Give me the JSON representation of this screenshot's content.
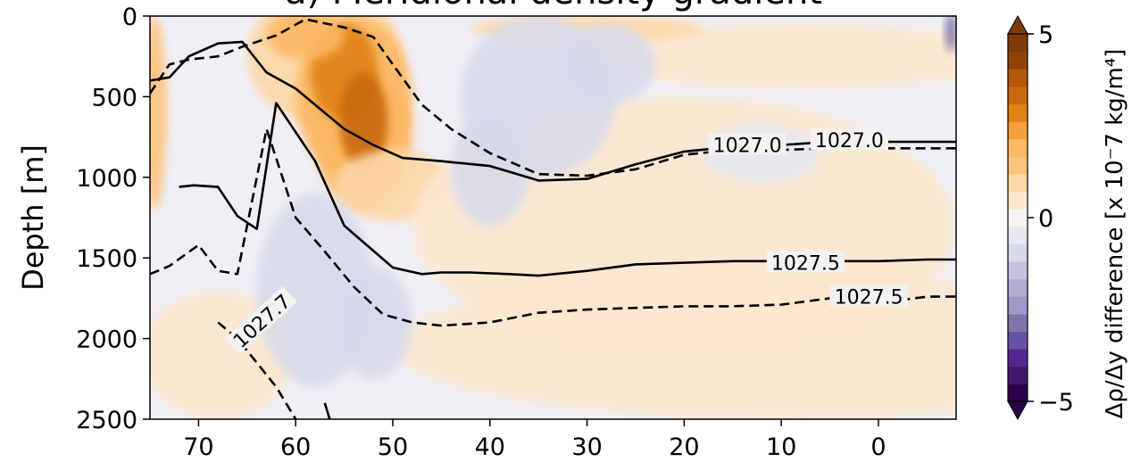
{
  "chart_data": {
    "type": "heatmap",
    "title": "a) Meridional density gradient",
    "ylabel": "Depth [m]",
    "xlabel": "",
    "xlim": [
      75,
      -8
    ],
    "ylim": [
      2500,
      0
    ],
    "x_ticks": [
      70,
      60,
      50,
      40,
      30,
      20,
      10,
      0
    ],
    "y_ticks": [
      0,
      500,
      1000,
      1500,
      2000,
      2500
    ],
    "colorbar": {
      "label": "Δρ/Δy difference [x 10⁻7 kg/m⁴]",
      "ticks": [
        5,
        0,
        -5
      ],
      "range": [
        -5,
        5
      ],
      "extend": "both",
      "colormap": "PuOr_r",
      "colors": [
        "#2d004b",
        "#3f1a6b",
        "#54278f",
        "#6a51a3",
        "#8073ac",
        "#9e9ac8",
        "#b2abd2",
        "#c6c3e0",
        "#d8daeb",
        "#e7e8f3",
        "#f7f4ef",
        "#fde8cf",
        "#fdd7a6",
        "#fdc37d",
        "#fdb863",
        "#f59f3d",
        "#e08214",
        "#c9680f",
        "#b35806",
        "#8f4405",
        "#7f3b08"
      ]
    },
    "anomaly_regions": [
      {
        "name": "positive",
        "lat_range": [
          62,
          46
        ],
        "depth_range": [
          0,
          1300
        ],
        "peak_value": 3.5,
        "peak_lat": 54,
        "peak_depth": 600
      },
      {
        "name": "positive",
        "lat_range": [
          75,
          73
        ],
        "depth_range": [
          0,
          1200
        ],
        "peak_value": 1.5
      },
      {
        "name": "negative",
        "lat_range": [
          45,
          25
        ],
        "depth_range": [
          0,
          1200
        ],
        "peak_value": -1.0
      },
      {
        "name": "negative",
        "lat_range": [
          67,
          45
        ],
        "depth_range": [
          1200,
          2300
        ],
        "peak_value": -0.8
      }
    ],
    "contours": [
      {
        "level": 1027.0,
        "style": "solid",
        "label": "1027.0",
        "x": [
          75,
          73,
          71,
          68,
          65.5,
          63,
          60,
          55,
          52,
          49,
          45,
          40,
          35,
          30,
          25,
          20,
          15,
          10,
          5,
          0,
          -5,
          -8
        ],
        "y": [
          400,
          380,
          250,
          170,
          160,
          350,
          450,
          700,
          800,
          880,
          900,
          930,
          1020,
          1010,
          920,
          840,
          810,
          800,
          780,
          780,
          780,
          780
        ]
      },
      {
        "level": 1027.0,
        "style": "dashed",
        "label": "1027.0",
        "x": [
          75,
          73,
          71,
          68,
          65.5,
          62,
          59,
          55,
          52,
          50,
          47,
          44,
          40,
          35,
          30,
          25,
          20,
          15,
          10,
          5,
          0,
          -5,
          -8
        ],
        "y": [
          480,
          300,
          270,
          250,
          190,
          120,
          20,
          70,
          130,
          300,
          550,
          700,
          850,
          980,
          990,
          950,
          860,
          830,
          830,
          820,
          820,
          820,
          820
        ]
      },
      {
        "level": 1027.5,
        "style": "solid",
        "label": "1027.5",
        "x": [
          72,
          70.5,
          68,
          66,
          64,
          62,
          58,
          55,
          50,
          47,
          45,
          42,
          38,
          35,
          30,
          25,
          20,
          15,
          10,
          5,
          0,
          -5,
          -8
        ],
        "y": [
          1060,
          1050,
          1060,
          1240,
          1320,
          540,
          900,
          1300,
          1560,
          1600,
          1590,
          1590,
          1600,
          1610,
          1580,
          1540,
          1530,
          1520,
          1520,
          1520,
          1520,
          1510,
          1510
        ]
      },
      {
        "level": 1027.5,
        "style": "dashed",
        "label": "1027.5",
        "x": [
          75,
          73,
          70,
          68,
          66,
          63,
          60,
          57,
          54,
          51,
          48,
          45,
          40,
          35,
          30,
          25,
          20,
          15,
          10,
          5,
          0,
          -5,
          -8
        ],
        "y": [
          1600,
          1550,
          1420,
          1580,
          1600,
          700,
          1250,
          1460,
          1680,
          1850,
          1900,
          1920,
          1900,
          1840,
          1820,
          1810,
          1800,
          1800,
          1790,
          1750,
          1780,
          1740,
          1740
        ]
      },
      {
        "level": 1027.7,
        "style": "dashed",
        "label": "1027.7",
        "x": [
          68,
          66,
          64,
          62,
          60
        ],
        "y": [
          1900,
          2000,
          2150,
          2300,
          2500
        ]
      },
      {
        "level": 1027.7,
        "style": "solid",
        "label": "",
        "x": [
          57,
          56.5
        ],
        "y": [
          2400,
          2500
        ]
      }
    ]
  }
}
